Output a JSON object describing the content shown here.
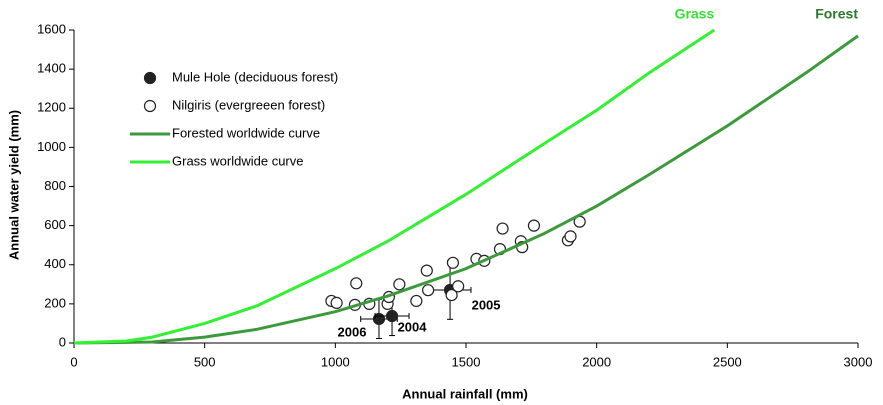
{
  "chart_data": {
    "type": "scatter",
    "x_label": "Annual rainfall (mm)",
    "y_label": "Annual water yield (mm)",
    "xlim": [
      0,
      3000
    ],
    "xticks": [
      0,
      500,
      1000,
      1500,
      2000,
      2500,
      3000
    ],
    "ylim": [
      0,
      1600
    ],
    "yticks": [
      0,
      200,
      400,
      600,
      800,
      1000,
      1200,
      1400,
      1600
    ],
    "grid": false,
    "legend": "upper-left",
    "series": [
      {
        "name": "Mule Hole (deciduous forest)",
        "type": "scatter",
        "marker": "filled",
        "color": "#222222",
        "x": [
          1167,
          1217,
          1439
        ],
        "values": [
          123,
          138,
          271
        ],
        "x_error": [
          70,
          65,
          80
        ],
        "y_error": [
          100,
          100,
          150
        ],
        "point_labels": [
          "2006",
          "2004",
          "2005"
        ]
      },
      {
        "name": "Nilgiris (evergreeen forest)",
        "type": "scatter",
        "marker": "open",
        "color": "#222222",
        "x": [
          985,
          1005,
          1075,
          1080,
          1130,
          1200,
          1205,
          1245,
          1310,
          1350,
          1355,
          1445,
          1450,
          1470,
          1540,
          1570,
          1630,
          1640,
          1710,
          1715,
          1760,
          1890,
          1900,
          1935
        ],
        "values": [
          215,
          205,
          195,
          305,
          200,
          200,
          235,
          300,
          215,
          370,
          270,
          245,
          410,
          290,
          430,
          420,
          480,
          585,
          520,
          490,
          600,
          525,
          545,
          620
        ]
      },
      {
        "name": "Forested worldwide curve",
        "type": "line",
        "color": "#3c9a3c",
        "end_label": "Forest",
        "label_color": "#2b7a2b",
        "x": [
          0,
          300,
          500,
          700,
          1000,
          1200,
          1500,
          1800,
          2000,
          2200,
          2500,
          2800,
          3000
        ],
        "values": [
          0,
          5,
          30,
          70,
          160,
          240,
          380,
          560,
          700,
          860,
          1110,
          1380,
          1570
        ]
      },
      {
        "name": "Grass worldwide curve",
        "type": "line",
        "color": "#33f033",
        "end_label": "Grass",
        "label_color": "#33e033",
        "x": [
          0,
          200,
          300,
          500,
          700,
          1000,
          1200,
          1500,
          1800,
          2000,
          2200,
          2450
        ],
        "values": [
          0,
          10,
          30,
          100,
          190,
          380,
          520,
          760,
          1020,
          1190,
          1380,
          1600
        ]
      }
    ]
  }
}
